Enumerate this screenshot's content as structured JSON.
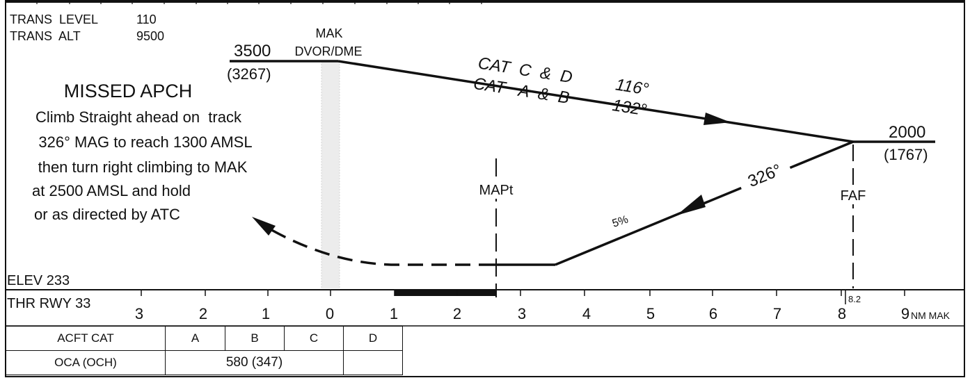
{
  "header": {
    "trans_level_label": "TRANS  LEVEL",
    "trans_level_value": "110",
    "trans_alt_label": "TRANS  ALT",
    "trans_alt_value": "9500"
  },
  "missed_approach": {
    "title": "MISSED APCH",
    "lines": [
      "Climb Straight ahead on  track",
      "326° MAG to reach 1300 AMSL",
      "then turn right climbing to MAK",
      "at 2500 AMSL and hold",
      "or as directed by ATC"
    ]
  },
  "fixes": {
    "mak_alt": "3500",
    "mak_height": "(3267)",
    "mak_name": "MAK",
    "mak_type": "DVOR/DME",
    "faf_alt": "2000",
    "faf_height": "(1767)",
    "faf_label": "FAF",
    "mapt_label": "MAPt",
    "faf_distance": "8.2"
  },
  "tracks": {
    "cat_cd_label": "CAT  C  &  D",
    "cat_cd_track": "116°",
    "cat_ab_label": "CAT   A  &  B",
    "cat_ab_track": "132°",
    "final_track": "326°",
    "gradient": "5%"
  },
  "elevation": "ELEV 233",
  "threshold": "THR RWY 33",
  "distance_scale": {
    "left_labels": [
      "3",
      "2",
      "1",
      "0"
    ],
    "right_labels": [
      "1",
      "2",
      "3",
      "4",
      "5",
      "6",
      "7",
      "8",
      "9"
    ],
    "unit": "NM MAK"
  },
  "minima_table": {
    "header": "ACFT CAT",
    "categories": [
      "A",
      "B",
      "C",
      "D"
    ],
    "row_label": "OCA (OCH)",
    "row_value": "580 (347)"
  }
}
